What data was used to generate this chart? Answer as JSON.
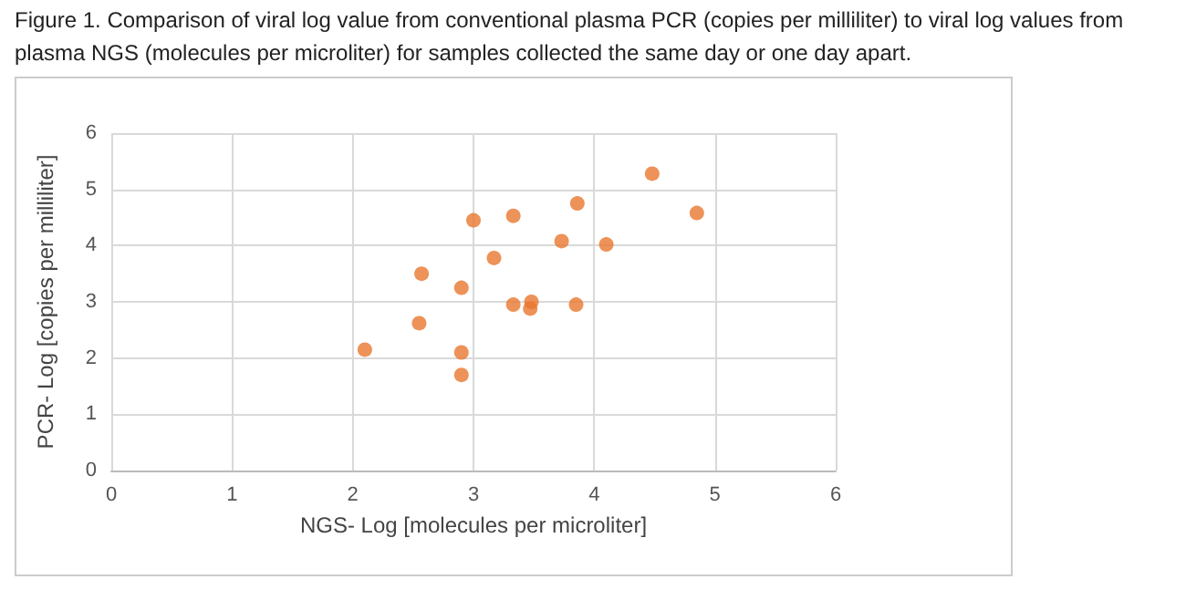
{
  "chart_data": {
    "type": "scatter",
    "title": "Figure 1. Comparison of viral log value from conventional plasma PCR (copies per milliliter) to viral log values from plasma NGS (molecules per microliter) for samples collected the same day or one day apart.",
    "xlabel": "NGS- Log [molecules per microliter]",
    "ylabel": "PCR- Log [copies per milliliter]",
    "x": [
      2.1,
      2.55,
      2.57,
      2.9,
      2.9,
      2.9,
      3.0,
      3.17,
      3.33,
      3.33,
      3.47,
      3.48,
      3.73,
      3.85,
      3.86,
      4.1,
      4.48,
      4.85
    ],
    "series": [
      {
        "color": "#e8772e",
        "values": [
          2.15,
          2.62,
          3.5,
          3.25,
          2.1,
          1.7,
          4.45,
          3.78,
          4.53,
          2.95,
          2.88,
          3.0,
          4.08,
          2.95,
          4.75,
          4.02,
          5.28,
          4.58
        ]
      }
    ],
    "xlim": [
      0,
      6
    ],
    "xticks": [
      0,
      1,
      2,
      3,
      4,
      5,
      6
    ],
    "ylim": [
      0,
      6
    ],
    "yticks": [
      0,
      1,
      2,
      3,
      4,
      5,
      6
    ],
    "grid": true,
    "marker": "circle"
  }
}
